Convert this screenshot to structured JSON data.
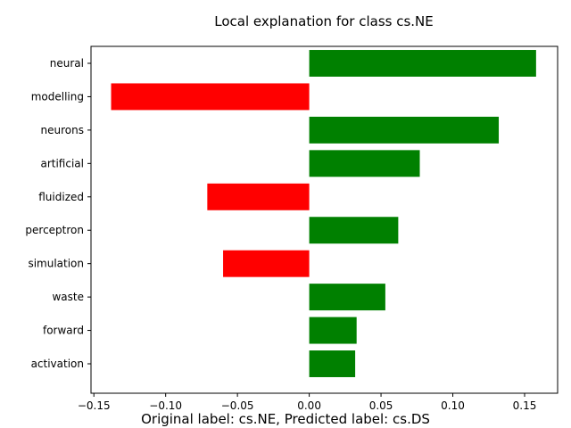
{
  "chart_data": {
    "type": "bar",
    "orientation": "horizontal",
    "title": "Local explanation for class cs.NE",
    "categories": [
      "neural",
      "modelling",
      "neurons",
      "artificial",
      "fluidized",
      "perceptron",
      "simulation",
      "waste",
      "forward",
      "activation"
    ],
    "values": [
      0.158,
      -0.138,
      0.132,
      0.077,
      -0.071,
      0.062,
      -0.06,
      0.053,
      0.033,
      0.032
    ],
    "xlim": [
      -0.152,
      0.173
    ],
    "xticks": [
      -0.15,
      -0.1,
      -0.05,
      0.0,
      0.05,
      0.1,
      0.15
    ],
    "xtick_labels": [
      "−0.15",
      "−0.10",
      "−0.05",
      "0.00",
      "0.05",
      "0.10",
      "0.15"
    ],
    "positive_color": "#008000",
    "negative_color": "#ff0000",
    "grid": false,
    "legend": "none"
  },
  "caption": "Original label: cs.NE, Predicted label: cs.DS"
}
